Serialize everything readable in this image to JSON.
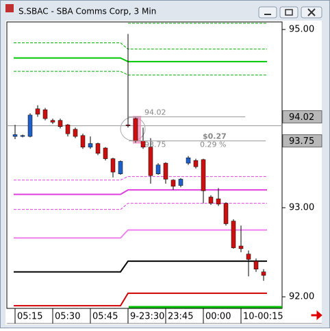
{
  "window": {
    "title": "S.SBAC - SBA Comms Corp, 3 Min"
  },
  "chart_data": {
    "type": "candlestick",
    "categories": [
      "05:15",
      null,
      null,
      null,
      null,
      "05:30",
      null,
      null,
      null,
      null,
      "05:45",
      null,
      null,
      null,
      null,
      "9-23:30",
      null,
      null,
      null,
      null,
      "23:45",
      null,
      null,
      null,
      null,
      "00:00",
      null,
      null,
      null,
      null,
      "10-00:15",
      null,
      null,
      null
    ],
    "open": [
      93.8,
      93.8,
      93.8,
      94.11,
      94.1,
      93.98,
      93.98,
      93.93,
      93.88,
      93.81,
      93.68,
      93.72,
      93.67,
      93.55,
      93.38,
      93.93,
      94.0,
      93.75,
      93.68,
      93.38,
      93.5,
      93.31,
      93.25,
      93.5,
      93.53,
      93.54,
      93.12,
      93.1,
      93.05,
      92.85,
      92.57,
      92.48,
      92.4,
      92.28
    ],
    "high": [
      93.93,
      93.82,
      94.06,
      94.15,
      94.12,
      94.0,
      94.0,
      93.94,
      93.9,
      93.83,
      93.8,
      93.73,
      93.68,
      93.56,
      93.53,
      94.95,
      94.01,
      93.9,
      93.78,
      93.5,
      93.51,
      93.32,
      93.33,
      93.58,
      93.55,
      93.55,
      93.14,
      93.22,
      93.06,
      92.87,
      92.8,
      92.52,
      92.43,
      92.31
    ],
    "low": [
      93.77,
      93.79,
      93.79,
      94.02,
      93.98,
      93.94,
      93.89,
      93.8,
      93.78,
      93.66,
      93.66,
      93.59,
      93.53,
      93.34,
      93.37,
      93.9,
      93.73,
      93.66,
      93.27,
      93.37,
      93.27,
      93.2,
      93.23,
      93.48,
      93.44,
      93.05,
      93.03,
      93.02,
      92.8,
      92.54,
      92.5,
      92.23,
      92.28,
      92.18
    ],
    "close": [
      93.82,
      93.81,
      94.04,
      94.05,
      94.0,
      93.96,
      93.91,
      93.83,
      93.8,
      93.68,
      93.72,
      93.61,
      93.55,
      93.4,
      93.52,
      93.92,
      93.75,
      93.68,
      93.36,
      93.48,
      93.32,
      93.24,
      93.32,
      93.56,
      93.46,
      93.19,
      93.05,
      93.04,
      92.82,
      92.55,
      92.54,
      92.42,
      92.31,
      92.24
    ],
    "up_color": "#1f5fc8",
    "down_color": "#cc1010",
    "levels": [
      {
        "color": "#00b000",
        "dashed": true,
        "values": [
          null,
          95.07
        ]
      },
      {
        "color": "#00b000",
        "dashed": true,
        "values": [
          94.85,
          94.78
        ]
      },
      {
        "color": "#00c800",
        "dashed": false,
        "values": [
          94.68,
          94.64
        ]
      },
      {
        "color": "#00b000",
        "dashed": true,
        "values": [
          94.53,
          94.49
        ]
      },
      {
        "color": "#e040e0",
        "dashed": true,
        "values": [
          93.31,
          93.35
        ]
      },
      {
        "color": "#e040e0",
        "dashed": false,
        "values": [
          93.15,
          93.2
        ]
      },
      {
        "color": "#e040e0",
        "dashed": true,
        "values": [
          92.98,
          93.05
        ]
      },
      {
        "color": "#f080f0",
        "dashed": false,
        "values": [
          92.66,
          92.75
        ]
      },
      {
        "color": "#000000",
        "dashed": false,
        "values": [
          92.28,
          92.4
        ]
      },
      {
        "color": "#d00000",
        "dashed": false,
        "values": [
          91.9,
          92.04
        ]
      }
    ],
    "crosshair": 93.92,
    "markers": [
      {
        "value": 94.02,
        "label": "94.02"
      },
      {
        "value": 93.75,
        "label": "93.75"
      }
    ],
    "measure": {
      "change": "$0.27",
      "percent": "0.29 %"
    },
    "ylim": [
      91.87,
      95.085
    ],
    "yticks": [
      {
        "value": 95,
        "label": "95.00"
      },
      {
        "value": 93,
        "label": "93.00"
      },
      {
        "value": 92,
        "label": "92.00"
      }
    ]
  }
}
